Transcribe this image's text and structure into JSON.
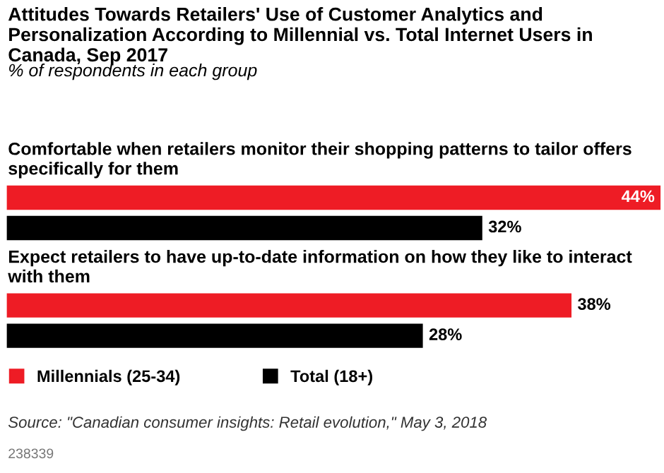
{
  "chart_data": {
    "type": "bar",
    "orientation": "horizontal",
    "title": "Attitudes Towards Retailers' Use of Customer Analytics and Personalization According to Millennial vs. Total Internet Users in Canada, Sep 2017",
    "subtitle": "% of respondents in each group",
    "categories": [
      "Comfortable when retailers monitor their shopping patterns to tailor offers specifically for them",
      "Expect retailers to have up-to-date information on how they like to interact with them"
    ],
    "series": [
      {
        "name": "Millennials (25-34)",
        "color": "#ee1c25",
        "values": [
          44,
          38
        ],
        "value_labels": [
          "44%",
          "38%"
        ]
      },
      {
        "name": "Total (18+)",
        "color": "#000000",
        "values": [
          32,
          28
        ],
        "value_labels": [
          "32%",
          "28%"
        ]
      }
    ],
    "xlim": [
      0,
      44
    ],
    "legend": "bottom",
    "annotations": [
      "Source: \"Canadian consumer insights: Retail evolution,\" May 3, 2018",
      "238339"
    ]
  }
}
